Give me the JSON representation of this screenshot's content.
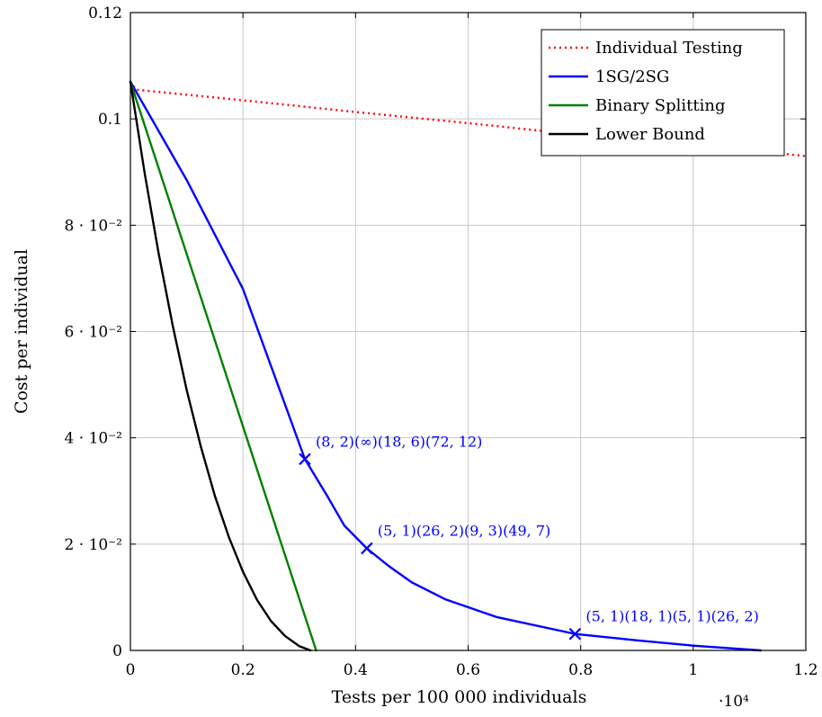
{
  "chart_data": {
    "type": "line",
    "xlabel": "Tests per 100 000 individuals",
    "ylabel": "Cost per individual",
    "x_multiplier": "·10⁴",
    "xlim": [
      0,
      12000
    ],
    "ylim": [
      0,
      0.12
    ],
    "x_ticks": [
      {
        "value": 0,
        "label": "0"
      },
      {
        "value": 2000,
        "label": "0.2"
      },
      {
        "value": 4000,
        "label": "0.4"
      },
      {
        "value": 6000,
        "label": "0.6"
      },
      {
        "value": 8000,
        "label": "0.8"
      },
      {
        "value": 10000,
        "label": "1"
      },
      {
        "value": 12000,
        "label": "1.2"
      }
    ],
    "y_ticks": [
      {
        "value": 0,
        "label": "0"
      },
      {
        "value": 0.02,
        "label": "2 · 10⁻²"
      },
      {
        "value": 0.04,
        "label": "4 · 10⁻²"
      },
      {
        "value": 0.06,
        "label": "6 · 10⁻²"
      },
      {
        "value": 0.08,
        "label": "8 · 10⁻²"
      },
      {
        "value": 0.1,
        "label": "0.1"
      },
      {
        "value": 0.12,
        "label": "0.12"
      }
    ],
    "grid": true,
    "legend_position": "top-right",
    "series": [
      {
        "name": "Individual Testing",
        "color": "#ff0000",
        "style": "dotted",
        "x": [
          0,
          100,
          2000,
          4000,
          6000,
          8000,
          10000,
          12000
        ],
        "y": [
          0.107,
          0.1055,
          0.1035,
          0.1013,
          0.0992,
          0.097,
          0.0951,
          0.093
        ]
      },
      {
        "name": "1SG/2SG",
        "color": "#0000ff",
        "style": "solid",
        "x": [
          0,
          1000,
          2000,
          3100,
          3500,
          3800,
          4200,
          4600,
          5000,
          5600,
          6500,
          7900,
          9000,
          10000,
          11200
        ],
        "y": [
          0.107,
          0.0885,
          0.068,
          0.036,
          0.029,
          0.0235,
          0.0192,
          0.0158,
          0.0128,
          0.0096,
          0.0063,
          0.0031,
          0.0019,
          0.0009,
          0.0
        ]
      },
      {
        "name": "Binary Splitting",
        "color": "#008000",
        "style": "solid",
        "x": [
          0,
          3300
        ],
        "y": [
          0.107,
          0.0
        ]
      },
      {
        "name": "Lower Bound",
        "color": "#000000",
        "style": "solid",
        "x": [
          0,
          250,
          500,
          750,
          1000,
          1250,
          1500,
          1750,
          2000,
          2250,
          2500,
          2750,
          3000,
          3200
        ],
        "y": [
          0.107,
          0.09,
          0.0748,
          0.0612,
          0.049,
          0.0384,
          0.0291,
          0.0213,
          0.0148,
          0.0095,
          0.0055,
          0.0027,
          0.0008,
          0.0
        ]
      }
    ],
    "annotations": [
      {
        "x": 3100,
        "y": 0.036,
        "label": "(8, 2)(∞)(18, 6)(72, 12)",
        "color": "#0000ff"
      },
      {
        "x": 4200,
        "y": 0.0192,
        "label": "(5, 1)(26, 2)(9, 3)(49, 7)",
        "color": "#0000ff"
      },
      {
        "x": 7900,
        "y": 0.0031,
        "label": "(5, 1)(18, 1)(5, 1)(26, 2)",
        "color": "#0000ff"
      }
    ]
  }
}
